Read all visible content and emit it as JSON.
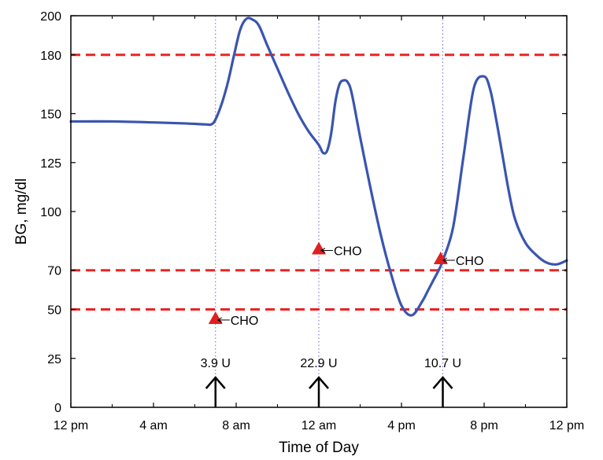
{
  "chart_data": {
    "type": "line",
    "title": "",
    "xlabel": "Time of Day",
    "ylabel": "BG, mg/dl",
    "x_unit": "hours",
    "xlim": [
      0,
      24
    ],
    "ylim": [
      0,
      200
    ],
    "x_ticks": [
      {
        "x": 0,
        "label": "12 pm"
      },
      {
        "x": 4,
        "label": "4 am"
      },
      {
        "x": 8,
        "label": "8 am"
      },
      {
        "x": 12,
        "label": "12 am"
      },
      {
        "x": 16,
        "label": "4 pm"
      },
      {
        "x": 20,
        "label": "8 pm"
      },
      {
        "x": 24,
        "label": "12 pm"
      }
    ],
    "y_ticks": [
      0,
      25,
      50,
      70,
      100,
      125,
      150,
      180,
      200
    ],
    "y_tick_labels": [
      "0",
      "25",
      "50",
      "70",
      "100",
      "125",
      "150",
      "180",
      "200"
    ],
    "thresholds": [
      180,
      70,
      50
    ],
    "threshold_color": "#ee2222",
    "series": [
      {
        "color": "#3a55b0",
        "x": [
          0,
          2,
          4,
          5.5,
          6.5,
          6.8,
          7.0,
          7.3,
          7.6,
          7.9,
          8.2,
          8.5,
          8.8,
          9.1,
          9.5,
          10,
          10.5,
          11,
          11.5,
          12,
          12.2,
          12.4,
          12.6,
          12.8,
          13.0,
          13.2,
          13.4,
          13.6,
          14.0,
          14.5,
          15.0,
          15.5,
          16.0,
          16.5,
          17.0,
          17.3,
          17.6,
          17.8,
          18.0,
          18.5,
          19.0,
          19.5,
          20.0,
          20.3,
          20.6,
          20.9,
          21.2,
          21.5,
          22.0,
          22.5,
          23.0,
          23.5,
          24.0
        ],
        "y": [
          146,
          146,
          145.5,
          145,
          144.5,
          144.5,
          147,
          155,
          166,
          180,
          193,
          198.5,
          198,
          195,
          185,
          173,
          161,
          150,
          141,
          134,
          130,
          131,
          140,
          156,
          165,
          167,
          166,
          160,
          138,
          112,
          88,
          68,
          52,
          47,
          54,
          60,
          66,
          70,
          75,
          92,
          128,
          163,
          169,
          162,
          146,
          128,
          110,
          96,
          84,
          78,
          74,
          73,
          75
        ]
      }
    ],
    "meal_markers": [
      {
        "x": 7.0,
        "y": 45,
        "label": "CHO"
      },
      {
        "x": 12.0,
        "y": 80.5,
        "label": "CHO"
      },
      {
        "x": 17.9,
        "y": 75.5,
        "label": "CHO"
      }
    ],
    "meal_color": "#e02020",
    "insulin_doses": [
      {
        "x": 7.0,
        "label": "3.9 U"
      },
      {
        "x": 12.0,
        "label": "22.9 U"
      },
      {
        "x": 18.0,
        "label": "10.7 U"
      }
    ],
    "grid": false,
    "legend": "none"
  }
}
